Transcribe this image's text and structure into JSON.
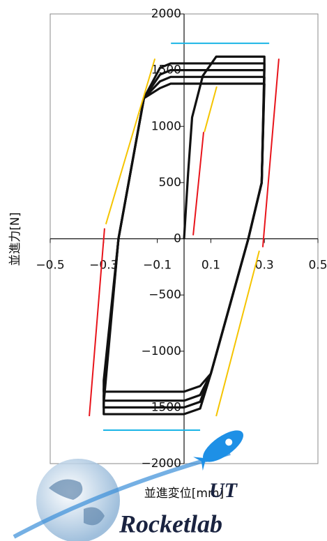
{
  "chart_data": {
    "type": "line",
    "xlabel": "並進変位[mm]",
    "ylabel": "並進力[N]",
    "annotations": [
      "UT",
      "Rocketlab"
    ],
    "xlim": [
      -0.5,
      0.5
    ],
    "ylim": [
      -2000,
      2000
    ],
    "xticks": [
      {
        "value": -0.5,
        "label": "−0.5"
      },
      {
        "value": -0.3,
        "label": "−0.3"
      },
      {
        "value": -0.1,
        "label": "−0.1"
      },
      0.1,
      0.3,
      0.5
    ],
    "yticks": [
      2000,
      1500,
      1000,
      500,
      0,
      {
        "value": -500,
        "label": "−500"
      },
      {
        "value": -1000,
        "label": "−1000"
      },
      {
        "value": -1500,
        "label": "−1500"
      },
      {
        "value": -2000,
        "label": "−2000"
      }
    ],
    "series": [
      {
        "color": "#111111",
        "x": [
          0,
          0.015,
          0.03,
          0.07,
          0.12,
          0.3,
          0.3
        ],
        "values": [
          0,
          580,
          1080,
          1450,
          1620,
          1620,
          1500
        ]
      },
      {
        "color": "#111111",
        "x": [
          0.3,
          0.29,
          0.24,
          0.1,
          0.06,
          0.0,
          -0.3,
          -0.3,
          -0.245,
          -0.15,
          -0.09,
          -0.05,
          0.3,
          0.3
        ],
        "values": [
          1560,
          500,
          0,
          -1200,
          -1310,
          -1360,
          -1360,
          -1260,
          0,
          1250,
          1520,
          1560,
          1560,
          1560
        ]
      },
      {
        "color": "#111111",
        "x": [
          0.3,
          0.29,
          0.24,
          0.1,
          0.06,
          0.0,
          -0.3,
          -0.3,
          -0.245,
          -0.15,
          -0.09,
          -0.05,
          0.3,
          0.3
        ],
        "values": [
          1500,
          500,
          0,
          -1200,
          -1390,
          -1440,
          -1440,
          -1340,
          0,
          1250,
          1460,
          1500,
          1500,
          1500
        ]
      },
      {
        "color": "#111111",
        "x": [
          0.3,
          0.29,
          0.24,
          0.1,
          0.06,
          0.0,
          -0.3,
          -0.3,
          -0.245,
          -0.15,
          -0.09,
          -0.05,
          0.3,
          0.3
        ],
        "values": [
          1440,
          500,
          0,
          -1200,
          -1450,
          -1500,
          -1500,
          -1400,
          0,
          1250,
          1400,
          1440,
          1440,
          1440
        ]
      },
      {
        "color": "#111111",
        "x": [
          0.3,
          0.29,
          0.24,
          0.1,
          0.06,
          0.0,
          -0.3,
          -0.3,
          -0.245,
          -0.15,
          -0.09,
          -0.05,
          0.3,
          0.3
        ],
        "values": [
          1380,
          500,
          0,
          -1200,
          -1510,
          -1560,
          -1560,
          -1460,
          0,
          1250,
          1340,
          1380,
          1380,
          1380
        ]
      },
      {
        "color": "#e8141b",
        "x": [
          -0.354,
          -0.297
        ],
        "values": [
          -1578,
          93
        ]
      },
      {
        "color": "#e8141b",
        "x": [
          0.034,
          0.073
        ],
        "values": [
          31,
          950
        ]
      },
      {
        "color": "#e8141b",
        "x": [
          0.294,
          0.354
        ],
        "values": [
          -75,
          1602
        ]
      },
      {
        "color": "#f5c400",
        "x": [
          -0.292,
          -0.109
        ],
        "values": [
          130,
          1602
        ]
      },
      {
        "color": "#f5c400",
        "x": [
          0.076,
          0.122
        ],
        "values": [
          950,
          1354
        ]
      },
      {
        "color": "#f5c400",
        "x": [
          0.12,
          0.281
        ],
        "values": [
          -1578,
          -106
        ]
      },
      {
        "color": "#19b4e6",
        "x": [
          -0.049,
          0.318
        ],
        "values": [
          1739,
          1739
        ]
      },
      {
        "color": "#19b4e6",
        "x": [
          -0.302,
          0.06
        ],
        "values": [
          -1702,
          -1702
        ]
      }
    ]
  }
}
